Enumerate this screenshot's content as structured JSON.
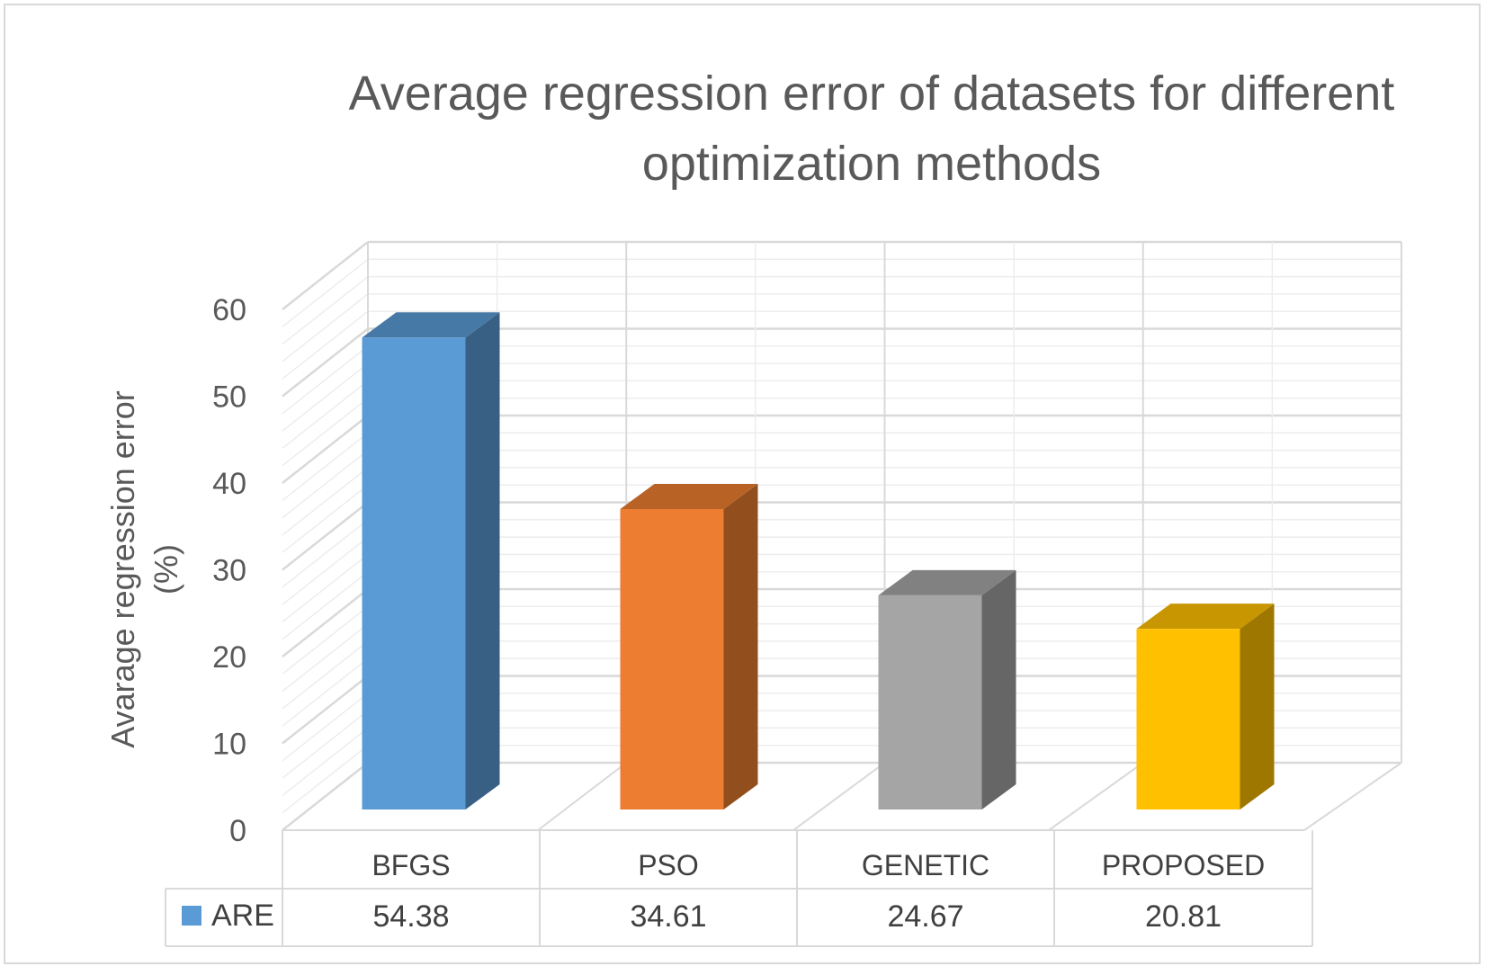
{
  "chart_data": {
    "type": "bar",
    "style": "3d-column",
    "title_lines": [
      "Average regression error of datasets for different",
      "optimization methods"
    ],
    "ylabel_lines": [
      "Avarage regression error",
      "(%)"
    ],
    "xlabel": "",
    "ylim": [
      0,
      60
    ],
    "yticks": [
      0,
      10,
      20,
      30,
      40,
      50,
      60
    ],
    "grid": true,
    "legend_placement": "data-table",
    "categories": [
      "BFGS",
      "PSO",
      "GENETIC",
      "PROPOSED"
    ],
    "series": [
      {
        "name": "ARE",
        "values": [
          54.38,
          34.61,
          24.67,
          20.81
        ],
        "value_labels": [
          "54.38",
          "34.61",
          "24.67",
          "20.81"
        ],
        "colors": [
          "#5b9bd5",
          "#ed7d31",
          "#a5a5a5",
          "#ffc000"
        ]
      }
    ]
  }
}
